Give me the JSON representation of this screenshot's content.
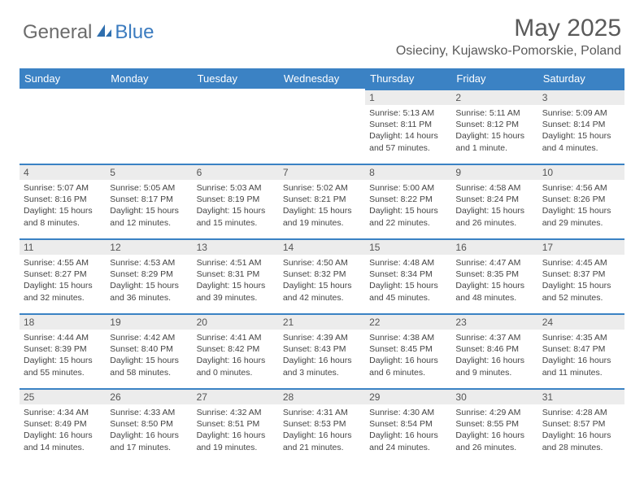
{
  "logo": {
    "text1": "General",
    "text2": "Blue"
  },
  "title": "May 2025",
  "location": "Osieciny, Kujawsko-Pomorskie, Poland",
  "colors": {
    "header_bg": "#3b82c4",
    "daynum_bg": "#ececec",
    "border": "#3b82c4",
    "text": "#444444",
    "title_color": "#5a5a5a"
  },
  "weekdays": [
    "Sunday",
    "Monday",
    "Tuesday",
    "Wednesday",
    "Thursday",
    "Friday",
    "Saturday"
  ],
  "weeks": [
    [
      {
        "n": "",
        "sr": "",
        "ss": "",
        "dl": ""
      },
      {
        "n": "",
        "sr": "",
        "ss": "",
        "dl": ""
      },
      {
        "n": "",
        "sr": "",
        "ss": "",
        "dl": ""
      },
      {
        "n": "",
        "sr": "",
        "ss": "",
        "dl": ""
      },
      {
        "n": "1",
        "sr": "Sunrise: 5:13 AM",
        "ss": "Sunset: 8:11 PM",
        "dl": "Daylight: 14 hours and 57 minutes."
      },
      {
        "n": "2",
        "sr": "Sunrise: 5:11 AM",
        "ss": "Sunset: 8:12 PM",
        "dl": "Daylight: 15 hours and 1 minute."
      },
      {
        "n": "3",
        "sr": "Sunrise: 5:09 AM",
        "ss": "Sunset: 8:14 PM",
        "dl": "Daylight: 15 hours and 4 minutes."
      }
    ],
    [
      {
        "n": "4",
        "sr": "Sunrise: 5:07 AM",
        "ss": "Sunset: 8:16 PM",
        "dl": "Daylight: 15 hours and 8 minutes."
      },
      {
        "n": "5",
        "sr": "Sunrise: 5:05 AM",
        "ss": "Sunset: 8:17 PM",
        "dl": "Daylight: 15 hours and 12 minutes."
      },
      {
        "n": "6",
        "sr": "Sunrise: 5:03 AM",
        "ss": "Sunset: 8:19 PM",
        "dl": "Daylight: 15 hours and 15 minutes."
      },
      {
        "n": "7",
        "sr": "Sunrise: 5:02 AM",
        "ss": "Sunset: 8:21 PM",
        "dl": "Daylight: 15 hours and 19 minutes."
      },
      {
        "n": "8",
        "sr": "Sunrise: 5:00 AM",
        "ss": "Sunset: 8:22 PM",
        "dl": "Daylight: 15 hours and 22 minutes."
      },
      {
        "n": "9",
        "sr": "Sunrise: 4:58 AM",
        "ss": "Sunset: 8:24 PM",
        "dl": "Daylight: 15 hours and 26 minutes."
      },
      {
        "n": "10",
        "sr": "Sunrise: 4:56 AM",
        "ss": "Sunset: 8:26 PM",
        "dl": "Daylight: 15 hours and 29 minutes."
      }
    ],
    [
      {
        "n": "11",
        "sr": "Sunrise: 4:55 AM",
        "ss": "Sunset: 8:27 PM",
        "dl": "Daylight: 15 hours and 32 minutes."
      },
      {
        "n": "12",
        "sr": "Sunrise: 4:53 AM",
        "ss": "Sunset: 8:29 PM",
        "dl": "Daylight: 15 hours and 36 minutes."
      },
      {
        "n": "13",
        "sr": "Sunrise: 4:51 AM",
        "ss": "Sunset: 8:31 PM",
        "dl": "Daylight: 15 hours and 39 minutes."
      },
      {
        "n": "14",
        "sr": "Sunrise: 4:50 AM",
        "ss": "Sunset: 8:32 PM",
        "dl": "Daylight: 15 hours and 42 minutes."
      },
      {
        "n": "15",
        "sr": "Sunrise: 4:48 AM",
        "ss": "Sunset: 8:34 PM",
        "dl": "Daylight: 15 hours and 45 minutes."
      },
      {
        "n": "16",
        "sr": "Sunrise: 4:47 AM",
        "ss": "Sunset: 8:35 PM",
        "dl": "Daylight: 15 hours and 48 minutes."
      },
      {
        "n": "17",
        "sr": "Sunrise: 4:45 AM",
        "ss": "Sunset: 8:37 PM",
        "dl": "Daylight: 15 hours and 52 minutes."
      }
    ],
    [
      {
        "n": "18",
        "sr": "Sunrise: 4:44 AM",
        "ss": "Sunset: 8:39 PM",
        "dl": "Daylight: 15 hours and 55 minutes."
      },
      {
        "n": "19",
        "sr": "Sunrise: 4:42 AM",
        "ss": "Sunset: 8:40 PM",
        "dl": "Daylight: 15 hours and 58 minutes."
      },
      {
        "n": "20",
        "sr": "Sunrise: 4:41 AM",
        "ss": "Sunset: 8:42 PM",
        "dl": "Daylight: 16 hours and 0 minutes."
      },
      {
        "n": "21",
        "sr": "Sunrise: 4:39 AM",
        "ss": "Sunset: 8:43 PM",
        "dl": "Daylight: 16 hours and 3 minutes."
      },
      {
        "n": "22",
        "sr": "Sunrise: 4:38 AM",
        "ss": "Sunset: 8:45 PM",
        "dl": "Daylight: 16 hours and 6 minutes."
      },
      {
        "n": "23",
        "sr": "Sunrise: 4:37 AM",
        "ss": "Sunset: 8:46 PM",
        "dl": "Daylight: 16 hours and 9 minutes."
      },
      {
        "n": "24",
        "sr": "Sunrise: 4:35 AM",
        "ss": "Sunset: 8:47 PM",
        "dl": "Daylight: 16 hours and 11 minutes."
      }
    ],
    [
      {
        "n": "25",
        "sr": "Sunrise: 4:34 AM",
        "ss": "Sunset: 8:49 PM",
        "dl": "Daylight: 16 hours and 14 minutes."
      },
      {
        "n": "26",
        "sr": "Sunrise: 4:33 AM",
        "ss": "Sunset: 8:50 PM",
        "dl": "Daylight: 16 hours and 17 minutes."
      },
      {
        "n": "27",
        "sr": "Sunrise: 4:32 AM",
        "ss": "Sunset: 8:51 PM",
        "dl": "Daylight: 16 hours and 19 minutes."
      },
      {
        "n": "28",
        "sr": "Sunrise: 4:31 AM",
        "ss": "Sunset: 8:53 PM",
        "dl": "Daylight: 16 hours and 21 minutes."
      },
      {
        "n": "29",
        "sr": "Sunrise: 4:30 AM",
        "ss": "Sunset: 8:54 PM",
        "dl": "Daylight: 16 hours and 24 minutes."
      },
      {
        "n": "30",
        "sr": "Sunrise: 4:29 AM",
        "ss": "Sunset: 8:55 PM",
        "dl": "Daylight: 16 hours and 26 minutes."
      },
      {
        "n": "31",
        "sr": "Sunrise: 4:28 AM",
        "ss": "Sunset: 8:57 PM",
        "dl": "Daylight: 16 hours and 28 minutes."
      }
    ]
  ]
}
